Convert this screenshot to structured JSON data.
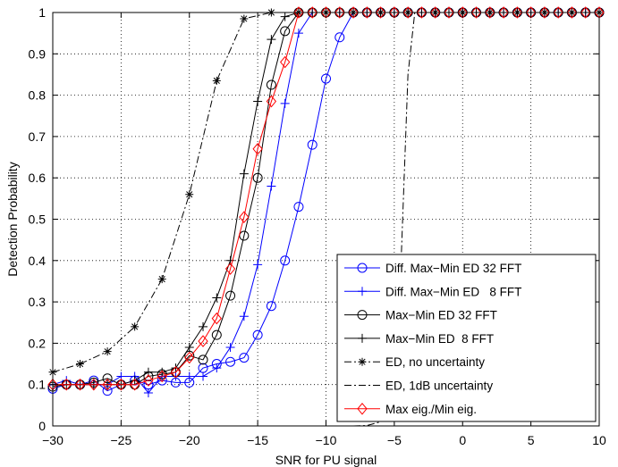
{
  "chart_data": {
    "type": "line",
    "xlabel": "SNR for PU signal",
    "ylabel": "Detection Probability",
    "xlim": [
      -30,
      10
    ],
    "ylim": [
      0,
      1
    ],
    "xticks": [
      -30,
      -25,
      -20,
      -15,
      -10,
      -5,
      0,
      5,
      10
    ],
    "yticks": [
      0,
      0.1,
      0.2,
      0.3,
      0.4,
      0.5,
      0.6,
      0.7,
      0.8,
      0.9,
      1
    ],
    "xtick_labels": [
      "−30",
      "−25",
      "−20",
      "−15",
      "−10",
      "−5",
      "0",
      "5",
      "10"
    ],
    "ytick_labels": [
      "0",
      "0.1",
      "0.2",
      "0.3",
      "0.4",
      "0.5",
      "0.6",
      "0.7",
      "0.8",
      "0.9",
      "1"
    ],
    "grid": "dotted",
    "legend_position": "bottom-right",
    "series": [
      {
        "name": "Diff. Max−Min ED 32 FFT",
        "color": "#0000ff",
        "line": "solid",
        "marker": "circle",
        "x": [
          -30,
          -29,
          -28,
          -27,
          -26,
          -25,
          -24,
          -23,
          -22,
          -21,
          -20,
          -19,
          -18,
          -17,
          -16,
          -15,
          -14,
          -13,
          -12,
          -11,
          -10,
          -9,
          -8,
          -7,
          -6,
          -5,
          -4,
          -3,
          -2,
          -1,
          0,
          1,
          2,
          3,
          4,
          5,
          6,
          7,
          8,
          9,
          10
        ],
        "y": [
          0.09,
          0.1,
          0.1,
          0.11,
          0.085,
          0.1,
          0.11,
          0.1,
          0.11,
          0.105,
          0.105,
          0.14,
          0.15,
          0.155,
          0.165,
          0.22,
          0.29,
          0.4,
          0.53,
          0.68,
          0.84,
          0.94,
          1.0,
          1.0,
          1.0,
          1.0,
          1.0,
          1.0,
          1.0,
          1.0,
          1.0,
          1.0,
          1.0,
          1.0,
          1.0,
          1.0,
          1.0,
          1.0,
          1.0,
          1.0,
          1.0
        ]
      },
      {
        "name": "Diff. Max−Min ED   8 FFT",
        "color": "#0000ff",
        "line": "solid",
        "marker": "plus",
        "x": [
          -30,
          -29,
          -28,
          -27,
          -26,
          -25,
          -24,
          -23,
          -22,
          -21,
          -20,
          -19,
          -18,
          -17,
          -16,
          -15,
          -14,
          -13,
          -12,
          -11,
          -10,
          -9,
          -8,
          -7,
          -6,
          -5,
          -4,
          -3,
          -2,
          -1,
          0,
          1,
          2,
          3,
          4,
          5,
          6,
          7,
          8,
          9,
          10
        ],
        "y": [
          0.1,
          0.11,
          0.1,
          0.1,
          0.1,
          0.12,
          0.12,
          0.08,
          0.12,
          0.12,
          0.12,
          0.12,
          0.14,
          0.19,
          0.265,
          0.39,
          0.58,
          0.78,
          0.95,
          1.0,
          1.0,
          1.0,
          1.0,
          1.0,
          1.0,
          1.0,
          1.0,
          1.0,
          1.0,
          1.0,
          1.0,
          1.0,
          1.0,
          1.0,
          1.0,
          1.0,
          1.0,
          1.0,
          1.0,
          1.0,
          1.0
        ]
      },
      {
        "name": "Max−Min ED 32 FFT",
        "color": "#000000",
        "line": "solid",
        "marker": "circle",
        "x": [
          -30,
          -29,
          -28,
          -27,
          -26,
          -25,
          -24,
          -23,
          -22,
          -21,
          -20,
          -19,
          -18,
          -17,
          -16,
          -15,
          -14,
          -13,
          -12,
          -11,
          -10,
          -9,
          -8,
          -7,
          -6,
          -5,
          -4,
          -3,
          -2,
          -1,
          0,
          1,
          2,
          3,
          4,
          5,
          6,
          7,
          8,
          9,
          10
        ],
        "y": [
          0.095,
          0.1,
          0.1,
          0.105,
          0.115,
          0.1,
          0.1,
          0.12,
          0.125,
          0.13,
          0.17,
          0.16,
          0.22,
          0.315,
          0.46,
          0.6,
          0.825,
          0.955,
          1.0,
          1.0,
          1.0,
          1.0,
          1.0,
          1.0,
          1.0,
          1.0,
          1.0,
          1.0,
          1.0,
          1.0,
          1.0,
          1.0,
          1.0,
          1.0,
          1.0,
          1.0,
          1.0,
          1.0,
          1.0,
          1.0,
          1.0
        ]
      },
      {
        "name": "Max−Min ED  8 FFT",
        "color": "#000000",
        "line": "solid",
        "marker": "plus",
        "x": [
          -30,
          -29,
          -28,
          -27,
          -26,
          -25,
          -24,
          -23,
          -22,
          -21,
          -20,
          -19,
          -18,
          -17,
          -16,
          -15,
          -14,
          -13,
          -12,
          -11,
          -10,
          -9,
          -8,
          -7,
          -6,
          -5,
          -4,
          -3,
          -2,
          -1,
          0,
          1,
          2,
          3,
          4,
          5,
          6,
          7,
          8,
          9,
          10
        ],
        "y": [
          0.1,
          0.1,
          0.1,
          0.1,
          0.1,
          0.1,
          0.11,
          0.13,
          0.13,
          0.14,
          0.19,
          0.24,
          0.31,
          0.4,
          0.61,
          0.785,
          0.935,
          0.99,
          1.0,
          1.0,
          1.0,
          1.0,
          1.0,
          1.0,
          1.0,
          1.0,
          1.0,
          1.0,
          1.0,
          1.0,
          1.0,
          1.0,
          1.0,
          1.0,
          1.0,
          1.0,
          1.0,
          1.0,
          1.0,
          1.0,
          1.0
        ]
      },
      {
        "name": "ED, no uncertainty",
        "color": "#000000",
        "line": "dashdot",
        "marker": "asterisk",
        "x": [
          -30,
          -28,
          -26,
          -24,
          -22,
          -20,
          -18,
          -16,
          -14,
          -12,
          -10,
          -8,
          -6,
          -4,
          -2,
          0,
          2,
          4,
          6,
          8,
          10
        ],
        "y": [
          0.13,
          0.15,
          0.18,
          0.24,
          0.355,
          0.56,
          0.835,
          0.985,
          1.0,
          1.0,
          1.0,
          1.0,
          1.0,
          1.0,
          1.0,
          1.0,
          1.0,
          1.0,
          1.0,
          1.0,
          1.0
        ]
      },
      {
        "name": "ED, 1dB uncertainty",
        "color": "#000000",
        "line": "dashdot",
        "marker": "none",
        "x": [
          -30,
          -20,
          -8,
          -7,
          -6,
          -5,
          -4.5,
          -4,
          -3.5,
          10
        ],
        "y": [
          0,
          0,
          0,
          0.001,
          0.01,
          0.1,
          0.4,
          0.85,
          1.0,
          1.0
        ]
      },
      {
        "name": "Max eig./Min eig.",
        "color": "#ff0000",
        "line": "solid",
        "marker": "diamond",
        "x": [
          -30,
          -29,
          -28,
          -27,
          -26,
          -25,
          -24,
          -23,
          -22,
          -21,
          -20,
          -19,
          -18,
          -17,
          -16,
          -15,
          -14,
          -13,
          -12,
          -11,
          -10,
          -9,
          -8,
          -7,
          -6,
          -5,
          -4,
          -3,
          -2,
          -1,
          0,
          1,
          2,
          3,
          4,
          5,
          6,
          7,
          8,
          9,
          10
        ],
        "y": [
          0.1,
          0.1,
          0.1,
          0.1,
          0.1,
          0.1,
          0.1,
          0.11,
          0.12,
          0.13,
          0.165,
          0.205,
          0.26,
          0.38,
          0.505,
          0.67,
          0.785,
          0.88,
          1.0,
          1.0,
          1.0,
          1.0,
          1.0,
          1.0,
          1.0,
          1.0,
          1.0,
          1.0,
          1.0,
          1.0,
          1.0,
          1.0,
          1.0,
          1.0,
          1.0,
          1.0,
          1.0,
          1.0,
          1.0,
          1.0,
          1.0
        ]
      }
    ]
  }
}
